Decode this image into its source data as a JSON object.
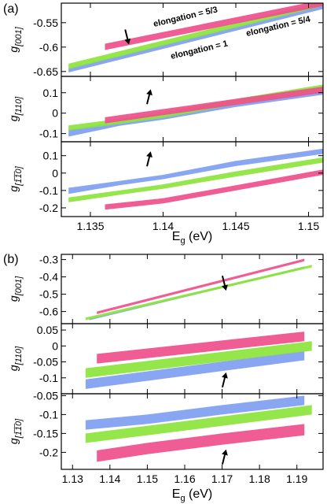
{
  "figure": {
    "colors": {
      "pink": "#ef4f8c",
      "green": "#8be43c",
      "blue": "#7f9ef2"
    },
    "annotations": [
      {
        "text": "elongation = 5/3",
        "color": "#ef4f8c"
      },
      {
        "text": "elongation = 5/4",
        "color": "#8be43c"
      },
      {
        "text": "elongation = 1",
        "color": "#7f9ef2"
      }
    ]
  },
  "chart_data": [
    {
      "label": "(a)",
      "type": "line",
      "xlabel_main": "E",
      "xlabel_sub": "g",
      "xlabel_unit": " (eV)",
      "xlim": [
        1.133,
        1.151
      ],
      "xticks": [
        1.135,
        1.14,
        1.145,
        1.15
      ],
      "xtick_labels": [
        "1.135",
        "1.14",
        "1.145",
        "1.15"
      ],
      "panels": [
        {
          "ylabel_main": "g",
          "ylabel_sub": "[001]",
          "ylim": [
            -0.66,
            -0.51
          ],
          "yticks": [
            -0.65,
            -0.6,
            -0.55
          ],
          "ytick_labels": [
            "-0.65",
            "-0.6",
            "-0.55"
          ],
          "arrow": {
            "x": 1.1375,
            "y": -0.577,
            "dir": "down"
          },
          "series": [
            {
              "name": "elongation = 1",
              "color": "#7f9ef2",
              "x": [
                1.1335,
                1.151
              ],
              "lo": [
                -0.652,
                -0.522
              ],
              "hi": [
                -0.643,
                -0.514
              ]
            },
            {
              "name": "elongation = 5/4",
              "color": "#8be43c",
              "x": [
                1.1335,
                1.151
              ],
              "lo": [
                -0.645,
                -0.516
              ],
              "hi": [
                -0.634,
                -0.506
              ]
            },
            {
              "name": "elongation = 5/3",
              "color": "#ef4f8c",
              "x": [
                1.136,
                1.151
              ],
              "lo": [
                -0.606,
                -0.516
              ],
              "hi": [
                -0.593,
                -0.503
              ]
            }
          ]
        },
        {
          "ylabel_main": "g",
          "ylabel_sub": "[110]",
          "ylim": [
            -0.14,
            0.18
          ],
          "yticks": [
            -0.1,
            0,
            0.1
          ],
          "ytick_labels": [
            "-0.1",
            "0",
            "0.1"
          ],
          "arrow": {
            "x": 1.139,
            "y": 0.075,
            "dir": "up"
          },
          "series": [
            {
              "name": "elongation = 1",
              "color": "#7f9ef2",
              "x": [
                1.1335,
                1.137,
                1.14,
                1.145,
                1.151
              ],
              "lo": [
                -0.115,
                -0.062,
                -0.032,
                0.03,
                0.09
              ],
              "hi": [
                -0.08,
                -0.042,
                -0.012,
                0.05,
                0.11
              ]
            },
            {
              "name": "elongation = 5/4",
              "color": "#8be43c",
              "x": [
                1.1335,
                1.137,
                1.14,
                1.145,
                1.151
              ],
              "lo": [
                -0.085,
                -0.053,
                -0.023,
                0.042,
                0.11
              ],
              "hi": [
                -0.06,
                -0.028,
                0.005,
                0.07,
                0.14
              ]
            },
            {
              "name": "elongation = 5/3",
              "color": "#ef4f8c",
              "x": [
                1.136,
                1.14,
                1.145,
                1.151
              ],
              "lo": [
                -0.05,
                -0.01,
                0.04,
                0.1
              ],
              "hi": [
                -0.02,
                0.02,
                0.07,
                0.13
              ]
            }
          ]
        },
        {
          "ylabel_main": "g",
          "ylabel_sub": "[1̅1̅0]",
          "ylim": [
            -0.25,
            0.18
          ],
          "yticks": [
            -0.2,
            -0.1,
            0,
            0.1
          ],
          "ytick_labels": [
            "-0.2",
            "-0.1",
            "0",
            "0.1"
          ],
          "arrow": {
            "x": 1.139,
            "y": 0.075,
            "dir": "up"
          },
          "series": [
            {
              "name": "elongation = 1",
              "color": "#7f9ef2",
              "x": [
                1.1335,
                1.137,
                1.14,
                1.145,
                1.151
              ],
              "lo": [
                -0.12,
                -0.07,
                -0.035,
                0.04,
                0.11
              ],
              "hi": [
                -0.085,
                -0.045,
                -0.01,
                0.07,
                0.14
              ]
            },
            {
              "name": "elongation = 5/4",
              "color": "#8be43c",
              "x": [
                1.1335,
                1.137,
                1.14,
                1.145,
                1.151
              ],
              "lo": [
                -0.168,
                -0.125,
                -0.09,
                -0.02,
                0.06
              ],
              "hi": [
                -0.14,
                -0.1,
                -0.065,
                0.01,
                0.09
              ]
            },
            {
              "name": "elongation = 5/3",
              "color": "#ef4f8c",
              "x": [
                1.136,
                1.14,
                1.145,
                1.151
              ],
              "lo": [
                -0.21,
                -0.175,
                -0.1,
                -0.01
              ],
              "hi": [
                -0.18,
                -0.145,
                -0.07,
                0.02
              ]
            }
          ]
        }
      ]
    },
    {
      "label": "(b)",
      "type": "line",
      "xlabel_main": "E",
      "xlabel_sub": "g",
      "xlabel_unit": " (eV)",
      "xlim": [
        1.127,
        1.197
      ],
      "xticks": [
        1.13,
        1.14,
        1.15,
        1.16,
        1.17,
        1.18,
        1.19
      ],
      "xtick_labels": [
        "1.13",
        "1.14",
        "1.15",
        "1.16",
        "1.17",
        "1.18",
        "1.19"
      ],
      "panels": [
        {
          "ylabel_main": "g",
          "ylabel_sub": "[001]",
          "ylim": [
            -0.67,
            -0.27
          ],
          "yticks": [
            -0.6,
            -0.5,
            -0.4,
            -0.3
          ],
          "ytick_labels": [
            "-0.6",
            "-0.5",
            "-0.4",
            "-0.3"
          ],
          "arrow": {
            "x": 1.1705,
            "y": -0.43,
            "dir": "down"
          },
          "series": [
            {
              "name": "elongation = 1",
              "color": "#7f9ef2",
              "x": [
                1.1345,
                1.192
              ],
              "lo": [
                -0.65,
                -0.35
              ],
              "hi": [
                -0.64,
                -0.34
              ]
            },
            {
              "name": "elongation = 5/4",
              "color": "#8be43c",
              "x": [
                1.1335,
                1.194
              ],
              "lo": [
                -0.65,
                -0.345
              ],
              "hi": [
                -0.635,
                -0.33
              ]
            },
            {
              "name": "elongation = 5/3",
              "color": "#ef4f8c",
              "x": [
                1.1365,
                1.192
              ],
              "lo": [
                -0.615,
                -0.31
              ],
              "hi": [
                -0.6,
                -0.295
              ]
            }
          ]
        },
        {
          "ylabel_main": "g",
          "ylabel_sub": "[110]",
          "ylim": [
            -0.15,
            0.07
          ],
          "yticks": [
            -0.1,
            -0.05,
            0,
            0.05
          ],
          "ytick_labels": [
            "-0.1",
            "-0.05",
            "0",
            "0.05"
          ],
          "arrow": {
            "x": 1.1705,
            "y": -0.11,
            "dir": "up"
          },
          "series": [
            {
              "name": "elongation = 1",
              "color": "#7f9ef2",
              "x": [
                1.1335,
                1.192
              ],
              "lo": [
                -0.135,
                -0.045
              ],
              "hi": [
                -0.105,
                -0.015
              ]
            },
            {
              "name": "elongation = 5/4",
              "color": "#8be43c",
              "x": [
                1.1335,
                1.194
              ],
              "lo": [
                -0.1,
                -0.015
              ],
              "hi": [
                -0.07,
                0.015
              ]
            },
            {
              "name": "elongation = 5/3",
              "color": "#ef4f8c",
              "x": [
                1.1365,
                1.192
              ],
              "lo": [
                -0.055,
                0.015
              ],
              "hi": [
                -0.025,
                0.045
              ]
            }
          ]
        },
        {
          "ylabel_main": "g",
          "ylabel_sub": "[1̅1̅0]",
          "ylim": [
            -0.245,
            -0.045
          ],
          "yticks": [
            -0.2,
            -0.15,
            -0.1,
            -0.05
          ],
          "ytick_labels": [
            "-0.2",
            "-0.15",
            "-0.1",
            "-0.05"
          ],
          "arrow": {
            "x": 1.1705,
            "y": -0.215,
            "dir": "up"
          },
          "series": [
            {
              "name": "elongation = 1",
              "color": "#7f9ef2",
              "x": [
                1.1335,
                1.15,
                1.17,
                1.192
              ],
              "lo": [
                -0.14,
                -0.125,
                -0.1,
                -0.075
              ],
              "hi": [
                -0.115,
                -0.1,
                -0.075,
                -0.05
              ]
            },
            {
              "name": "elongation = 5/4",
              "color": "#8be43c",
              "x": [
                1.1335,
                1.15,
                1.17,
                1.194
              ],
              "lo": [
                -0.175,
                -0.155,
                -0.13,
                -0.1
              ],
              "hi": [
                -0.15,
                -0.13,
                -0.105,
                -0.075
              ]
            },
            {
              "name": "elongation = 5/3",
              "color": "#ef4f8c",
              "x": [
                1.1365,
                1.15,
                1.17,
                1.192
              ],
              "lo": [
                -0.225,
                -0.205,
                -0.18,
                -0.155
              ],
              "hi": [
                -0.195,
                -0.175,
                -0.15,
                -0.125
              ]
            }
          ]
        }
      ]
    }
  ]
}
